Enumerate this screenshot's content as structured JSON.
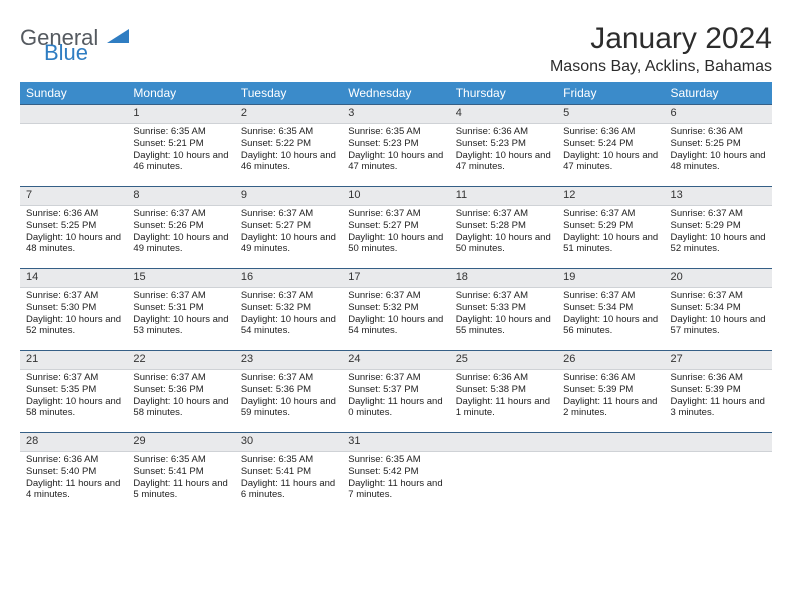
{
  "logo": {
    "line1": "General",
    "line2": "Blue"
  },
  "title": "January 2024",
  "location": "Masons Bay, Acklins, Bahamas",
  "colors": {
    "header_bg": "#3b8bca",
    "header_text": "#ffffff",
    "daynum_bg": "#e9eaec",
    "daynum_border_top": "#355f86",
    "logo_gray": "#555a60",
    "logo_blue": "#2f7dc2",
    "text": "#222222",
    "page_bg": "#ffffff"
  },
  "fonts": {
    "base_family": "Arial",
    "title_size_pt": 30,
    "location_size_pt": 16,
    "dayhead_size_pt": 12,
    "body_size_pt": 9.5
  },
  "day_headers": [
    "Sunday",
    "Monday",
    "Tuesday",
    "Wednesday",
    "Thursday",
    "Friday",
    "Saturday"
  ],
  "weeks": [
    [
      null,
      {
        "n": "1",
        "sunrise": "6:35 AM",
        "sunset": "5:21 PM",
        "daylight": "10 hours and 46 minutes."
      },
      {
        "n": "2",
        "sunrise": "6:35 AM",
        "sunset": "5:22 PM",
        "daylight": "10 hours and 46 minutes."
      },
      {
        "n": "3",
        "sunrise": "6:35 AM",
        "sunset": "5:23 PM",
        "daylight": "10 hours and 47 minutes."
      },
      {
        "n": "4",
        "sunrise": "6:36 AM",
        "sunset": "5:23 PM",
        "daylight": "10 hours and 47 minutes."
      },
      {
        "n": "5",
        "sunrise": "6:36 AM",
        "sunset": "5:24 PM",
        "daylight": "10 hours and 47 minutes."
      },
      {
        "n": "6",
        "sunrise": "6:36 AM",
        "sunset": "5:25 PM",
        "daylight": "10 hours and 48 minutes."
      }
    ],
    [
      {
        "n": "7",
        "sunrise": "6:36 AM",
        "sunset": "5:25 PM",
        "daylight": "10 hours and 48 minutes."
      },
      {
        "n": "8",
        "sunrise": "6:37 AM",
        "sunset": "5:26 PM",
        "daylight": "10 hours and 49 minutes."
      },
      {
        "n": "9",
        "sunrise": "6:37 AM",
        "sunset": "5:27 PM",
        "daylight": "10 hours and 49 minutes."
      },
      {
        "n": "10",
        "sunrise": "6:37 AM",
        "sunset": "5:27 PM",
        "daylight": "10 hours and 50 minutes."
      },
      {
        "n": "11",
        "sunrise": "6:37 AM",
        "sunset": "5:28 PM",
        "daylight": "10 hours and 50 minutes."
      },
      {
        "n": "12",
        "sunrise": "6:37 AM",
        "sunset": "5:29 PM",
        "daylight": "10 hours and 51 minutes."
      },
      {
        "n": "13",
        "sunrise": "6:37 AM",
        "sunset": "5:29 PM",
        "daylight": "10 hours and 52 minutes."
      }
    ],
    [
      {
        "n": "14",
        "sunrise": "6:37 AM",
        "sunset": "5:30 PM",
        "daylight": "10 hours and 52 minutes."
      },
      {
        "n": "15",
        "sunrise": "6:37 AM",
        "sunset": "5:31 PM",
        "daylight": "10 hours and 53 minutes."
      },
      {
        "n": "16",
        "sunrise": "6:37 AM",
        "sunset": "5:32 PM",
        "daylight": "10 hours and 54 minutes."
      },
      {
        "n": "17",
        "sunrise": "6:37 AM",
        "sunset": "5:32 PM",
        "daylight": "10 hours and 54 minutes."
      },
      {
        "n": "18",
        "sunrise": "6:37 AM",
        "sunset": "5:33 PM",
        "daylight": "10 hours and 55 minutes."
      },
      {
        "n": "19",
        "sunrise": "6:37 AM",
        "sunset": "5:34 PM",
        "daylight": "10 hours and 56 minutes."
      },
      {
        "n": "20",
        "sunrise": "6:37 AM",
        "sunset": "5:34 PM",
        "daylight": "10 hours and 57 minutes."
      }
    ],
    [
      {
        "n": "21",
        "sunrise": "6:37 AM",
        "sunset": "5:35 PM",
        "daylight": "10 hours and 58 minutes."
      },
      {
        "n": "22",
        "sunrise": "6:37 AM",
        "sunset": "5:36 PM",
        "daylight": "10 hours and 58 minutes."
      },
      {
        "n": "23",
        "sunrise": "6:37 AM",
        "sunset": "5:36 PM",
        "daylight": "10 hours and 59 minutes."
      },
      {
        "n": "24",
        "sunrise": "6:37 AM",
        "sunset": "5:37 PM",
        "daylight": "11 hours and 0 minutes."
      },
      {
        "n": "25",
        "sunrise": "6:36 AM",
        "sunset": "5:38 PM",
        "daylight": "11 hours and 1 minute."
      },
      {
        "n": "26",
        "sunrise": "6:36 AM",
        "sunset": "5:39 PM",
        "daylight": "11 hours and 2 minutes."
      },
      {
        "n": "27",
        "sunrise": "6:36 AM",
        "sunset": "5:39 PM",
        "daylight": "11 hours and 3 minutes."
      }
    ],
    [
      {
        "n": "28",
        "sunrise": "6:36 AM",
        "sunset": "5:40 PM",
        "daylight": "11 hours and 4 minutes."
      },
      {
        "n": "29",
        "sunrise": "6:35 AM",
        "sunset": "5:41 PM",
        "daylight": "11 hours and 5 minutes."
      },
      {
        "n": "30",
        "sunrise": "6:35 AM",
        "sunset": "5:41 PM",
        "daylight": "11 hours and 6 minutes."
      },
      {
        "n": "31",
        "sunrise": "6:35 AM",
        "sunset": "5:42 PM",
        "daylight": "11 hours and 7 minutes."
      },
      null,
      null,
      null
    ]
  ],
  "labels": {
    "sunrise": "Sunrise:",
    "sunset": "Sunset:",
    "daylight": "Daylight:"
  }
}
